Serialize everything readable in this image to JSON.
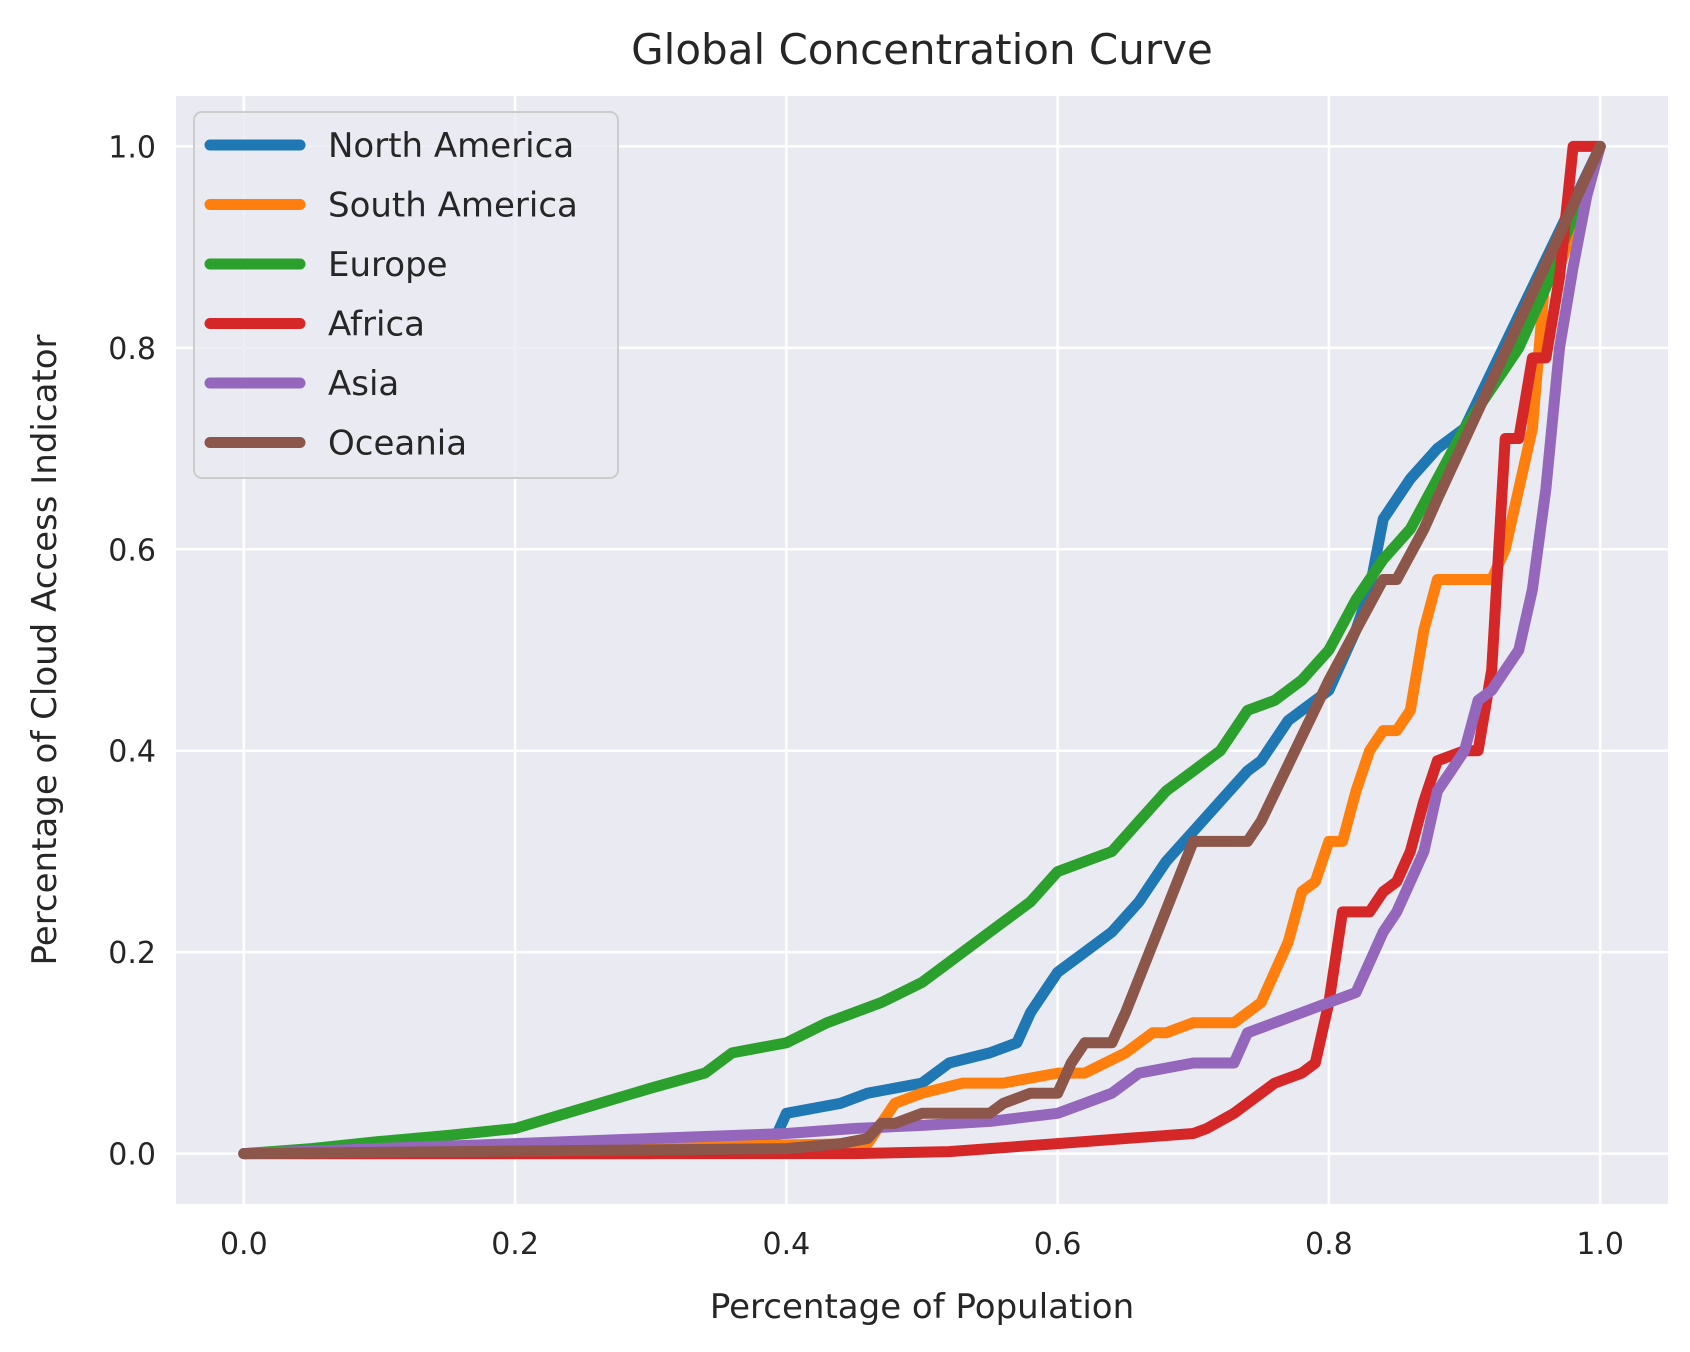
{
  "chart_data": {
    "type": "line",
    "title": "Global Concentration Curve",
    "xlabel": "Percentage of Population",
    "ylabel": "Percentage of Cloud Access Indicator",
    "xlim": [
      -0.05,
      1.05
    ],
    "ylim": [
      -0.05,
      1.05
    ],
    "xticks": [
      0.0,
      0.2,
      0.4,
      0.6,
      0.8,
      1.0
    ],
    "yticks": [
      0.0,
      0.2,
      0.4,
      0.6,
      0.8,
      1.0
    ],
    "xtick_labels": [
      "0.0",
      "0.2",
      "0.4",
      "0.6",
      "0.8",
      "1.0"
    ],
    "ytick_labels": [
      "0.0",
      "0.2",
      "0.4",
      "0.6",
      "0.8",
      "1.0"
    ],
    "grid": true,
    "legend_position": "top-left",
    "series": [
      {
        "name": "North America",
        "color": "#1f77b4",
        "x": [
          0.0,
          0.3,
          0.39,
          0.4,
          0.44,
          0.46,
          0.5,
          0.52,
          0.55,
          0.57,
          0.58,
          0.6,
          0.62,
          0.64,
          0.66,
          0.68,
          0.7,
          0.72,
          0.74,
          0.75,
          0.77,
          0.78,
          0.8,
          0.82,
          0.83,
          0.84,
          0.86,
          0.88,
          0.9,
          1.0
        ],
        "y": [
          0.0,
          0.0,
          0.01,
          0.04,
          0.05,
          0.06,
          0.07,
          0.09,
          0.1,
          0.11,
          0.14,
          0.18,
          0.2,
          0.22,
          0.25,
          0.29,
          0.32,
          0.35,
          0.38,
          0.39,
          0.43,
          0.44,
          0.46,
          0.52,
          0.56,
          0.63,
          0.67,
          0.7,
          0.72,
          1.0
        ]
      },
      {
        "name": "South America",
        "color": "#ff7f0e",
        "x": [
          0.0,
          0.46,
          0.48,
          0.5,
          0.53,
          0.56,
          0.6,
          0.62,
          0.65,
          0.67,
          0.68,
          0.7,
          0.73,
          0.75,
          0.77,
          0.78,
          0.79,
          0.8,
          0.81,
          0.82,
          0.83,
          0.84,
          0.85,
          0.86,
          0.87,
          0.88,
          0.9,
          0.92,
          0.93,
          0.95,
          0.96,
          0.97,
          1.0
        ],
        "y": [
          0.0,
          0.01,
          0.05,
          0.06,
          0.07,
          0.07,
          0.08,
          0.08,
          0.1,
          0.12,
          0.12,
          0.13,
          0.13,
          0.15,
          0.21,
          0.26,
          0.27,
          0.31,
          0.31,
          0.36,
          0.4,
          0.42,
          0.42,
          0.44,
          0.52,
          0.57,
          0.57,
          0.57,
          0.6,
          0.72,
          0.88,
          0.88,
          1.0
        ]
      },
      {
        "name": "Europe",
        "color": "#2ca02c",
        "x": [
          0.0,
          0.05,
          0.1,
          0.15,
          0.2,
          0.25,
          0.3,
          0.34,
          0.36,
          0.4,
          0.43,
          0.47,
          0.5,
          0.53,
          0.55,
          0.58,
          0.6,
          0.62,
          0.64,
          0.66,
          0.68,
          0.7,
          0.72,
          0.74,
          0.76,
          0.78,
          0.8,
          0.82,
          0.84,
          0.86,
          0.88,
          0.9,
          0.92,
          0.94,
          0.96,
          0.98,
          1.0
        ],
        "y": [
          0.0,
          0.005,
          0.012,
          0.018,
          0.025,
          0.045,
          0.065,
          0.08,
          0.1,
          0.11,
          0.13,
          0.15,
          0.17,
          0.2,
          0.22,
          0.25,
          0.28,
          0.29,
          0.3,
          0.33,
          0.36,
          0.38,
          0.4,
          0.44,
          0.45,
          0.47,
          0.5,
          0.55,
          0.59,
          0.62,
          0.67,
          0.72,
          0.76,
          0.8,
          0.86,
          0.93,
          1.0
        ]
      },
      {
        "name": "Africa",
        "color": "#d62728",
        "x": [
          0.0,
          0.45,
          0.52,
          0.55,
          0.6,
          0.65,
          0.7,
          0.71,
          0.73,
          0.75,
          0.76,
          0.78,
          0.79,
          0.8,
          0.81,
          0.83,
          0.84,
          0.85,
          0.86,
          0.87,
          0.88,
          0.9,
          0.91,
          0.92,
          0.93,
          0.94,
          0.95,
          0.96,
          0.97,
          0.98,
          1.0
        ],
        "y": [
          0.0,
          0.0,
          0.002,
          0.005,
          0.01,
          0.015,
          0.02,
          0.025,
          0.04,
          0.06,
          0.07,
          0.08,
          0.09,
          0.15,
          0.24,
          0.24,
          0.26,
          0.27,
          0.3,
          0.35,
          0.39,
          0.4,
          0.4,
          0.48,
          0.71,
          0.71,
          0.79,
          0.79,
          0.87,
          1.0,
          1.0
        ]
      },
      {
        "name": "Asia",
        "color": "#9467bd",
        "x": [
          0.0,
          0.2,
          0.3,
          0.4,
          0.45,
          0.5,
          0.55,
          0.6,
          0.62,
          0.64,
          0.66,
          0.7,
          0.73,
          0.74,
          0.76,
          0.78,
          0.8,
          0.82,
          0.83,
          0.84,
          0.85,
          0.86,
          0.87,
          0.88,
          0.89,
          0.9,
          0.91,
          0.92,
          0.93,
          0.94,
          0.95,
          0.96,
          0.97,
          0.98,
          0.99,
          1.0
        ],
        "y": [
          0.0,
          0.01,
          0.015,
          0.02,
          0.025,
          0.028,
          0.032,
          0.04,
          0.05,
          0.06,
          0.08,
          0.09,
          0.09,
          0.12,
          0.13,
          0.14,
          0.15,
          0.16,
          0.19,
          0.22,
          0.24,
          0.27,
          0.3,
          0.36,
          0.38,
          0.4,
          0.45,
          0.46,
          0.48,
          0.5,
          0.56,
          0.66,
          0.8,
          0.88,
          0.95,
          1.0
        ]
      },
      {
        "name": "Oceania",
        "color": "#8c564b",
        "x": [
          0.0,
          0.4,
          0.44,
          0.46,
          0.47,
          0.48,
          0.5,
          0.55,
          0.56,
          0.58,
          0.59,
          0.6,
          0.61,
          0.62,
          0.64,
          0.65,
          0.7,
          0.71,
          0.74,
          0.75,
          0.8,
          0.84,
          0.85,
          0.87,
          0.88,
          1.0
        ],
        "y": [
          0.0,
          0.005,
          0.01,
          0.015,
          0.03,
          0.03,
          0.04,
          0.04,
          0.05,
          0.06,
          0.06,
          0.06,
          0.09,
          0.11,
          0.11,
          0.14,
          0.31,
          0.31,
          0.31,
          0.33,
          0.47,
          0.57,
          0.57,
          0.62,
          0.65,
          1.0
        ]
      }
    ]
  }
}
